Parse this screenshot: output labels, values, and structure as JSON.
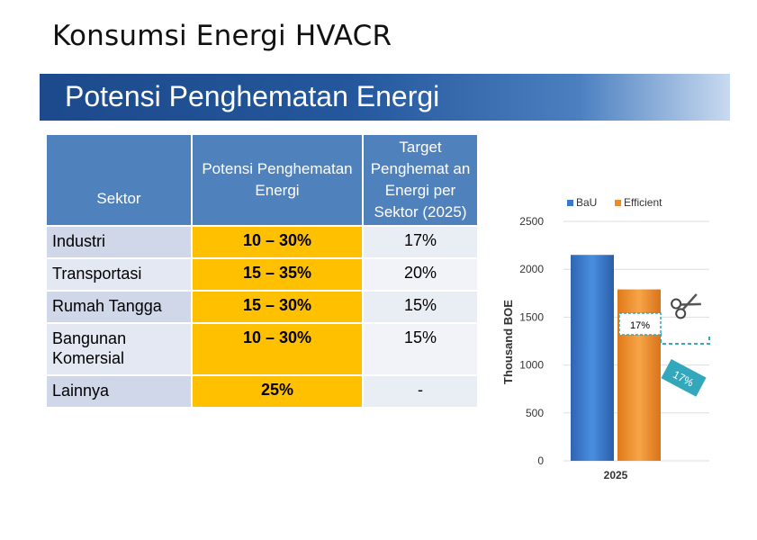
{
  "page": {
    "title": "Konsumsi Energi HVACR"
  },
  "banner": {
    "title": "Potensi Penghematan Energi"
  },
  "table": {
    "headers": [
      "Sektor",
      "Potensi Penghematan Energi",
      "Target Penghemat an Energi per Sektor (2025)"
    ],
    "rows": [
      {
        "sector": "Industri",
        "potensi": "10 – 30%",
        "target": "17%"
      },
      {
        "sector": "Transportasi",
        "potensi": "15 – 35%",
        "target": "20%"
      },
      {
        "sector": "Rumah Tangga",
        "potensi": "15 – 30%",
        "target": "15%"
      },
      {
        "sector": "Bangunan Komersial",
        "potensi": "10 – 30%",
        "target": "15%"
      },
      {
        "sector": "Lainnya",
        "potensi": "25%",
        "target": "-"
      }
    ]
  },
  "chart_data": {
    "type": "bar",
    "categories": [
      "2025"
    ],
    "series": [
      {
        "name": "BaU",
        "values": [
          2150
        ],
        "color": "#3a78cc"
      },
      {
        "name": "Efficient",
        "values": [
          1790
        ],
        "color": "#f08a24"
      }
    ],
    "ylabel": "Thousand BOE",
    "ylim": [
      0,
      2500
    ],
    "yticks": [
      0,
      500,
      1000,
      1500,
      2000,
      2500
    ],
    "grid": true,
    "legend": "top",
    "annotations": [
      "17%",
      "17%"
    ]
  },
  "colors": {
    "header_blue": "#4f81bd",
    "potensi_gold": "#ffc000",
    "sector_light": "#cfd7e9",
    "banner_dark": "#1c4a8c",
    "dash_teal": "#3aa6b9"
  },
  "icons": [
    "scissors-icon"
  ]
}
